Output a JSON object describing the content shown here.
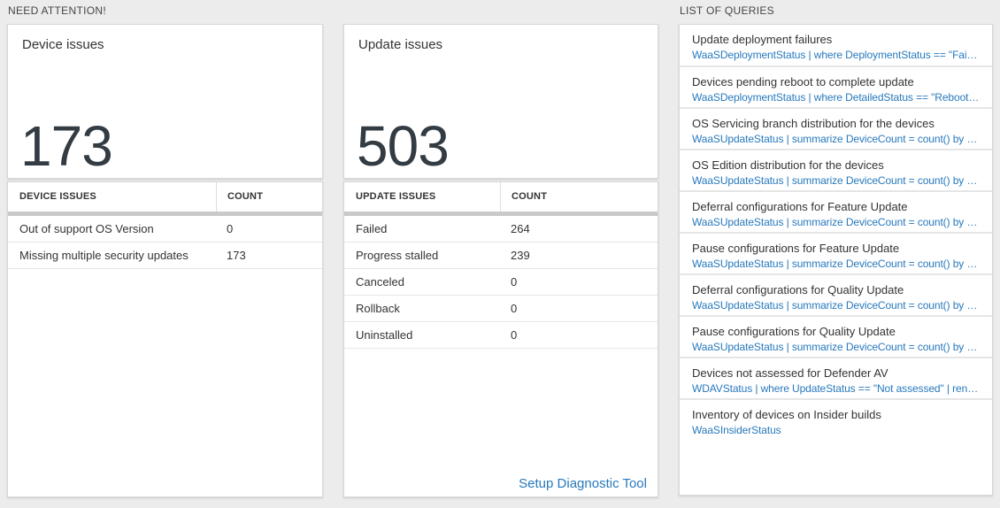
{
  "colors": {
    "accent_blue": "#2779bd",
    "number_dark": "#333b43",
    "header_bar_gray": "#c9c9c9",
    "page_background": "#ececec"
  },
  "need_attention": {
    "label": "NEED ATTENTION!"
  },
  "device_card": {
    "title": "Device issues",
    "value": "173"
  },
  "update_card": {
    "title": "Update issues",
    "value": "503"
  },
  "device_table": {
    "col_issue": "DEVICE ISSUES",
    "col_count": "COUNT",
    "rows": [
      {
        "label": "Out of support OS Version",
        "count": "0"
      },
      {
        "label": "Missing multiple security updates",
        "count": "173"
      }
    ]
  },
  "update_table": {
    "col_issue": "UPDATE ISSUES",
    "col_count": "COUNT",
    "rows": [
      {
        "label": "Failed",
        "count": "264"
      },
      {
        "label": "Progress stalled",
        "count": "239"
      },
      {
        "label": "Canceled",
        "count": "0"
      },
      {
        "label": "Rollback",
        "count": "0"
      },
      {
        "label": "Uninstalled",
        "count": "0"
      }
    ],
    "link_label": "Setup Diagnostic Tool"
  },
  "queries_panel": {
    "label": "LIST OF QUERIES",
    "items": [
      {
        "title": "Update deployment failures",
        "query": "WaaSDeploymentStatus | where DeploymentStatus == \"Failed\" |..."
      },
      {
        "title": "Devices pending reboot to complete update",
        "query": "WaaSDeploymentStatus | where DetailedStatus == \"Reboot pend..."
      },
      {
        "title": "OS Servicing branch distribution for the devices",
        "query": "WaaSUpdateStatus | summarize DeviceCount = count() by OSSer..."
      },
      {
        "title": "OS Edition distribution for the devices",
        "query": "WaaSUpdateStatus | summarize DeviceCount = count() by OSEdit..."
      },
      {
        "title": "Deferral configurations for Feature Update",
        "query": "WaaSUpdateStatus | summarize DeviceCount = count() by Featur..."
      },
      {
        "title": "Pause configurations for Feature Update",
        "query": "WaaSUpdateStatus | summarize DeviceCount = count() by Featur..."
      },
      {
        "title": "Deferral configurations for Quality Update",
        "query": "WaaSUpdateStatus | summarize DeviceCount = count() by Qualit..."
      },
      {
        "title": "Pause configurations for Quality Update",
        "query": "WaaSUpdateStatus | summarize DeviceCount = count() by Qualit..."
      },
      {
        "title": "Devices not assessed for Defender AV",
        "query": "WDAVStatus | where UpdateStatus == \"Not assessed\" | render ta..."
      },
      {
        "title": "Inventory of devices on Insider builds",
        "query": "WaaSInsiderStatus"
      }
    ]
  }
}
